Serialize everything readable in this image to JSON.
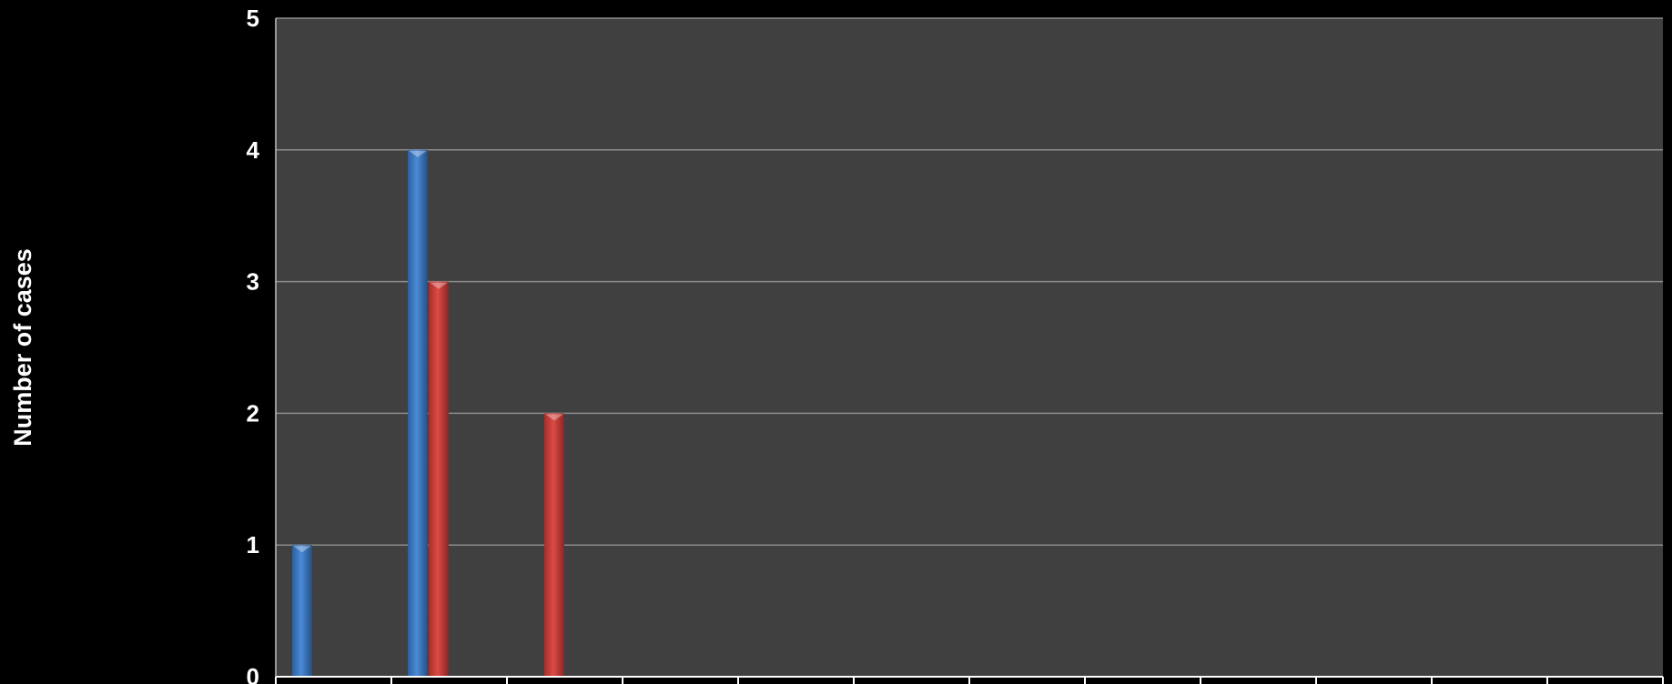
{
  "chart_data": {
    "type": "bar",
    "title": "",
    "xlabel": "",
    "ylabel": "Number of cases",
    "ylim": [
      0,
      5
    ],
    "yticks": [
      0,
      1,
      2,
      3,
      4,
      5
    ],
    "category_count": 12,
    "series": [
      {
        "color": "#3a78c4",
        "values": [
          1,
          4,
          0,
          0,
          0,
          0,
          0,
          0,
          0,
          0,
          0,
          0
        ]
      },
      {
        "color": "#c93a36",
        "values": [
          0,
          3,
          2,
          0,
          0,
          0,
          0,
          0,
          0,
          0,
          0,
          0
        ]
      }
    ],
    "grid": true,
    "plot_background": "#404040",
    "page_background": "#000000"
  }
}
